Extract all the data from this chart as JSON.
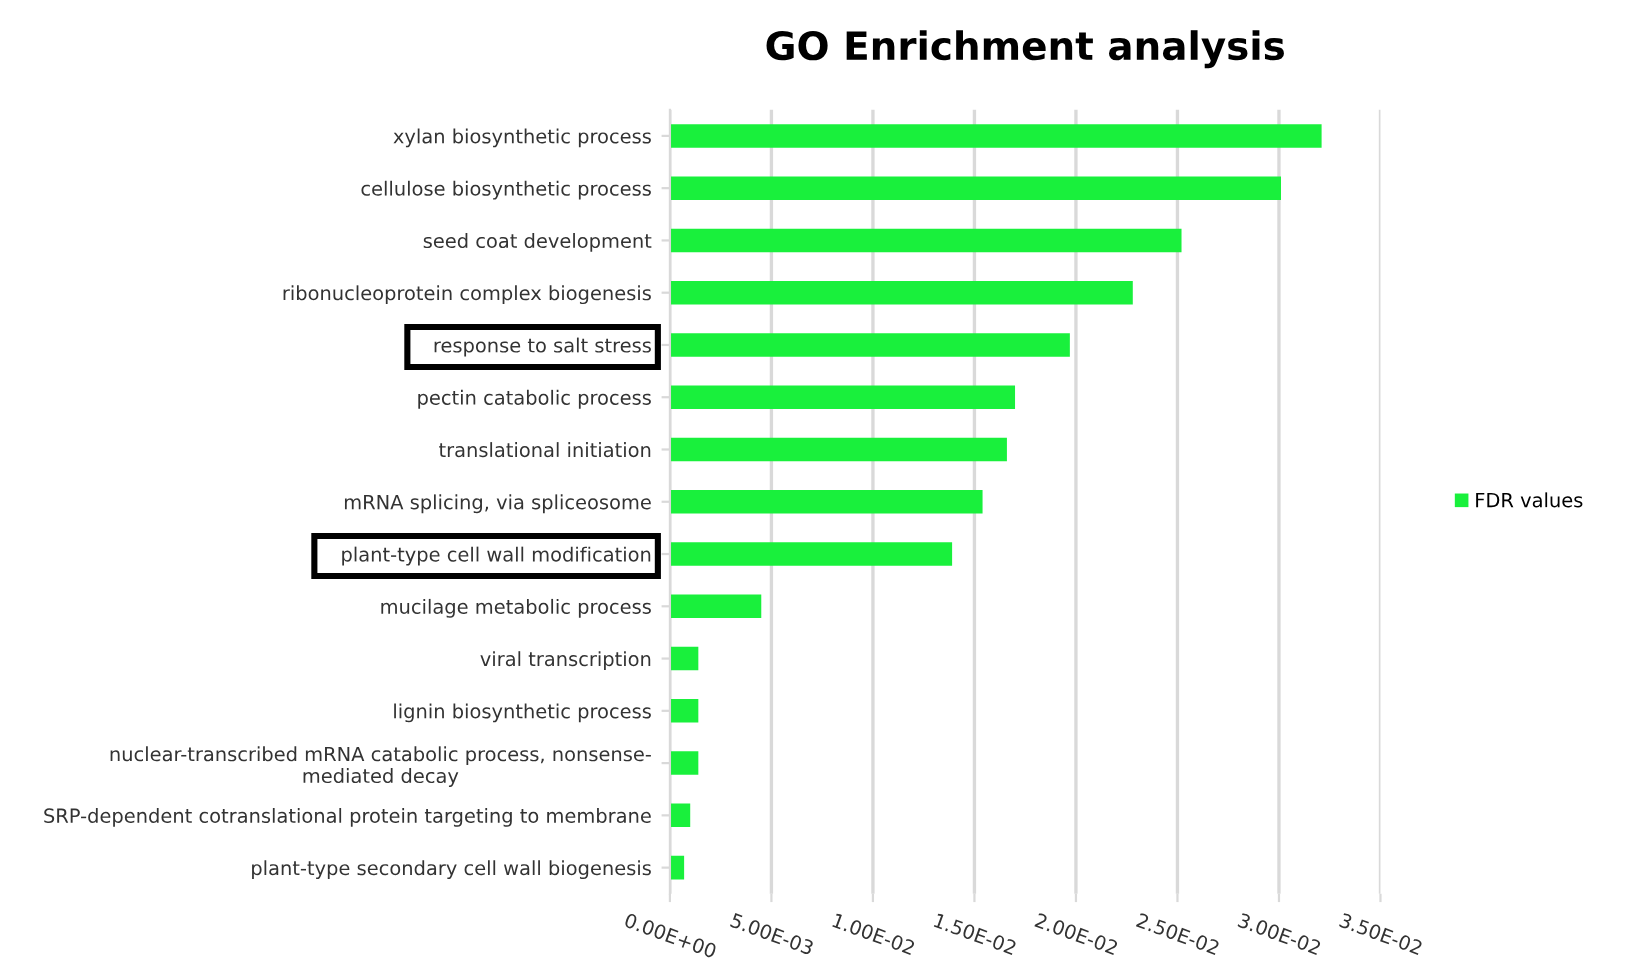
{
  "chart_data": {
    "type": "bar",
    "orientation": "horizontal",
    "title": "GO Enrichment analysis",
    "categories": [
      "xylan biosynthetic process",
      "cellulose biosynthetic process",
      "seed coat development",
      "ribonucleoprotein complex biogenesis",
      "response to salt stress",
      "pectin catabolic process",
      "translational initiation",
      "mRNA splicing, via spliceosome",
      "plant-type cell wall modification",
      "mucilage metabolic process",
      "viral transcription",
      "lignin biosynthetic process",
      "nuclear-transcribed mRNA catabolic process, nonsense-\nmediated decay",
      "SRP-dependent cotranslational protein targeting to membrane",
      "plant-type secondary cell wall biogenesis"
    ],
    "series": [
      {
        "name": "FDR values",
        "color": "#19f03c",
        "values": [
          0.0321,
          0.0301,
          0.0252,
          0.0228,
          0.0197,
          0.017,
          0.0166,
          0.0154,
          0.0139,
          0.0045,
          0.0014,
          0.0014,
          0.0014,
          0.001,
          0.0007
        ]
      }
    ],
    "xlim": [
      0,
      0.035
    ],
    "xticks": [
      {
        "value": 0,
        "label": "0.00E+00"
      },
      {
        "value": 0.005,
        "label": "5.00E-03"
      },
      {
        "value": 0.01,
        "label": "1.00E-02"
      },
      {
        "value": 0.015,
        "label": "1.50E-02"
      },
      {
        "value": 0.02,
        "label": "2.00E-02"
      },
      {
        "value": 0.025,
        "label": "2.50E-02"
      },
      {
        "value": 0.03,
        "label": "3.00E-02"
      },
      {
        "value": 0.035,
        "label": "3.50E-02"
      }
    ],
    "grid": "x",
    "legend": "right"
  }
}
